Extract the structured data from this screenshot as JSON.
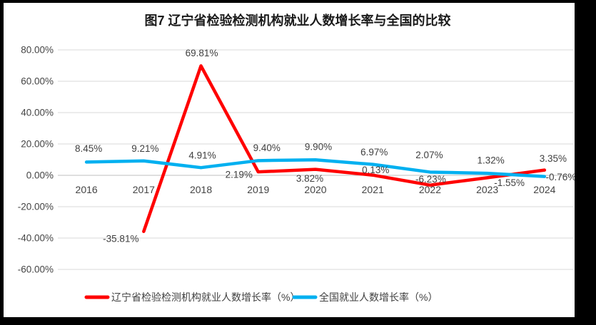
{
  "title": "图7  辽宁省检验检测机构就业人数增长率与全国的比较",
  "chart_data": {
    "type": "line",
    "categories": [
      "2016",
      "2017",
      "2018",
      "2019",
      "2020",
      "2021",
      "2022",
      "2023",
      "2024"
    ],
    "series": [
      {
        "name": "辽宁省检验检测机构就业人数增长率（%）",
        "color": "#ff0000",
        "values": [
          null,
          -35.81,
          69.81,
          2.19,
          3.82,
          0.13,
          -6.23,
          -1.55,
          3.35
        ],
        "labels": [
          "",
          "-35.81%",
          "69.81%",
          "2.19%",
          "3.82%",
          "0.13%",
          "-6.23%",
          "-1.55%",
          "3.35%"
        ],
        "label_offsets": [
          [
            0,
            0
          ],
          [
            -32,
            10
          ],
          [
            1,
            -18
          ],
          [
            -27,
            4
          ],
          [
            -8,
            13
          ],
          [
            4,
            -7
          ],
          [
            1,
            -8
          ],
          [
            31,
            7
          ],
          [
            12,
            -16
          ]
        ]
      },
      {
        "name": "全国就业人数增长率（%）",
        "color": "#00b0f0",
        "values": [
          8.45,
          9.21,
          4.91,
          9.4,
          9.9,
          6.97,
          2.07,
          1.32,
          -0.76
        ],
        "labels": [
          "8.45%",
          "9.21%",
          "4.91%",
          "9.40%",
          "9.90%",
          "6.97%",
          "2.07%",
          "1.32%",
          "-0.76%"
        ],
        "label_offsets": [
          [
            3,
            -19
          ],
          [
            2,
            -17
          ],
          [
            2,
            -17
          ],
          [
            12,
            -18
          ],
          [
            4,
            -18
          ],
          [
            2,
            -17
          ],
          [
            -1,
            -24
          ],
          [
            5,
            -18
          ],
          [
            23,
            1
          ]
        ]
      }
    ],
    "y_axis": {
      "min": -60,
      "max": 80,
      "step": 20,
      "tick_labels": [
        "80.00%",
        "60.00%",
        "40.00%",
        "20.00%",
        "0.00%",
        "-20.00%",
        "-40.00%",
        "-60.00%"
      ]
    },
    "grid": true,
    "legend_position": "bottom",
    "styles": {
      "gridline_color": "#d9d9d9",
      "zero_axis_color": "#bfbfbf",
      "line_width": 4.5
    }
  }
}
